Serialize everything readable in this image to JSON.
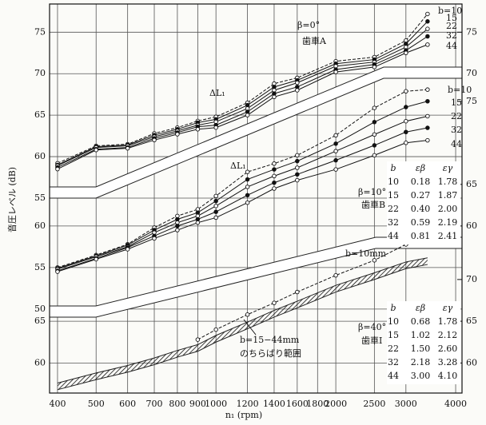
{
  "chart_data": [
    {
      "type": "line",
      "y_label": "音圧レベル (dB)",
      "x_label": "n₁ (rpm)",
      "log_x": true,
      "grid": true,
      "xlim": [
        382,
        4150
      ],
      "xticks": [
        400,
        500,
        600,
        700,
        800,
        900,
        1000,
        1200,
        1400,
        1600,
        1800,
        2000,
        2500,
        3000,
        4000
      ],
      "ylim": [
        31.5,
        78.4
      ],
      "yticks": [
        55,
        60,
        65,
        70,
        75
      ],
      "y2lim": [
        31.5,
        78.4
      ],
      "y2ticks": [
        70,
        75
      ],
      "annotations": [
        "β=0°",
        "歯車A",
        "ΔL₁"
      ],
      "x": [
        400,
        500,
        600,
        700,
        800,
        900,
        1000,
        1200,
        1400,
        1600,
        2000,
        2500,
        3000,
        3400
      ],
      "series": [
        {
          "name": "b=10",
          "color": "#111",
          "marker": "open",
          "dashed": true,
          "values": [
            59.2,
            61.3,
            61.5,
            62.8,
            63.5,
            64.3,
            64.8,
            66.5,
            68.8,
            69.5,
            71.5,
            72.0,
            74.0,
            77.2
          ]
        },
        {
          "name": "15",
          "color": "#111",
          "marker": "filled",
          "dashed": false,
          "values": [
            59.0,
            61.2,
            61.4,
            62.6,
            63.3,
            64.1,
            64.5,
            66.2,
            68.4,
            69.2,
            71.2,
            71.7,
            73.6,
            76.3
          ]
        },
        {
          "name": "22",
          "color": "#111",
          "marker": "open",
          "dashed": false,
          "values": [
            58.9,
            61.1,
            61.3,
            62.4,
            63.1,
            63.8,
            64.2,
            65.8,
            68.0,
            68.9,
            70.9,
            71.4,
            73.2,
            75.4
          ]
        },
        {
          "name": "32",
          "color": "#111",
          "marker": "filled",
          "dashed": false,
          "values": [
            58.7,
            60.9,
            61.1,
            62.2,
            62.9,
            63.6,
            63.8,
            65.4,
            67.6,
            68.4,
            70.5,
            71.1,
            72.8,
            74.5
          ]
        },
        {
          "name": "44",
          "color": "#111",
          "marker": "open",
          "dashed": false,
          "values": [
            58.5,
            60.8,
            61.0,
            62.0,
            62.7,
            63.3,
            63.5,
            65.0,
            67.2,
            68.0,
            70.2,
            70.8,
            72.5,
            73.5
          ]
        }
      ]
    },
    {
      "type": "line",
      "ylim": [
        39.9,
        86.7
      ],
      "yticks": [
        50,
        55,
        60
      ],
      "y2lim": [
        39.9,
        86.7
      ],
      "y2ticks": [
        60,
        65,
        75
      ],
      "annotations": [
        "β=10°",
        "歯車B",
        "ΔL₁"
      ],
      "table": {
        "columns": [
          "b",
          "εβ",
          "εγ"
        ],
        "rows": [
          [
            "10",
            "0.18",
            "1.78"
          ],
          [
            "15",
            "0.27",
            "1.87"
          ],
          [
            "22",
            "0.40",
            "2.00"
          ],
          [
            "32",
            "0.59",
            "2.19"
          ],
          [
            "44",
            "0.81",
            "2.41"
          ]
        ]
      },
      "x": [
        400,
        500,
        600,
        700,
        800,
        900,
        1000,
        1200,
        1400,
        1600,
        2000,
        2500,
        3000,
        3400
      ],
      "series": [
        {
          "name": "b=10",
          "color": "#111",
          "marker": "open",
          "dashed": true,
          "values": [
            55.0,
            56.5,
            57.8,
            59.8,
            61.2,
            62.0,
            63.6,
            66.5,
            67.5,
            68.5,
            70.9,
            74.2,
            76.2,
            76.4
          ]
        },
        {
          "name": "15",
          "color": "#111",
          "marker": "filled",
          "dashed": false,
          "values": [
            54.9,
            56.4,
            57.7,
            59.5,
            60.8,
            61.6,
            63.0,
            65.6,
            66.8,
            67.8,
            69.9,
            72.5,
            74.3,
            75.0
          ]
        },
        {
          "name": "22",
          "color": "#111",
          "marker": "open",
          "dashed": false,
          "values": [
            54.8,
            56.3,
            57.5,
            59.2,
            60.4,
            61.2,
            62.4,
            64.7,
            66.0,
            67.0,
            69.0,
            71.0,
            72.6,
            73.2
          ]
        },
        {
          "name": "32",
          "color": "#111",
          "marker": "filled",
          "dashed": false,
          "values": [
            54.6,
            56.1,
            57.4,
            58.8,
            60.0,
            60.8,
            61.7,
            63.7,
            65.2,
            66.2,
            67.9,
            69.7,
            71.3,
            71.8
          ]
        },
        {
          "name": "44",
          "color": "#111",
          "marker": "open",
          "dashed": false,
          "values": [
            54.5,
            56.0,
            57.2,
            58.5,
            59.5,
            60.4,
            61.0,
            62.8,
            64.5,
            65.5,
            66.8,
            68.5,
            70.0,
            70.3
          ]
        }
      ]
    },
    {
      "type": "line",
      "ylim": [
        56.4,
        103.0
      ],
      "yticks": [
        60,
        65
      ],
      "y2lim": [
        56.4,
        103.0
      ],
      "y2ticks": [
        60,
        65,
        70
      ],
      "annotations": [
        "β=40°",
        "歯車I"
      ],
      "table": {
        "columns": [
          "b",
          "εβ",
          "εγ"
        ],
        "rows": [
          [
            "10",
            "0.68",
            "1.78"
          ],
          [
            "15",
            "1.02",
            "2.12"
          ],
          [
            "22",
            "1.50",
            "2.60"
          ],
          [
            "32",
            "2.18",
            "3.28"
          ],
          [
            "44",
            "3.00",
            "4.10"
          ]
        ]
      },
      "x": [
        400,
        500,
        600,
        700,
        800,
        900,
        1000,
        1200,
        1400,
        1600,
        2000,
        2500,
        3000,
        3400
      ],
      "series": [
        {
          "name": "b=10mm",
          "color": "#111",
          "marker": "open",
          "dashed": true,
          "values": [
            null,
            null,
            null,
            null,
            null,
            62.8,
            64.0,
            65.8,
            67.2,
            68.5,
            70.5,
            72.3,
            74.2,
            74.5
          ]
        }
      ],
      "band": {
        "name": [
          "b=15−44mm",
          "のちらばり範囲"
        ],
        "color": "#222",
        "upper": [
          57.6,
          58.8,
          59.7,
          60.6,
          61.5,
          62.2,
          63.3,
          64.9,
          66.3,
          67.4,
          69.3,
          70.8,
          72.1,
          72.6
        ],
        "lower": [
          56.8,
          58.0,
          58.9,
          59.8,
          60.7,
          61.4,
          62.5,
          64.1,
          65.5,
          66.6,
          68.5,
          70.0,
          71.3,
          71.8
        ]
      }
    }
  ]
}
